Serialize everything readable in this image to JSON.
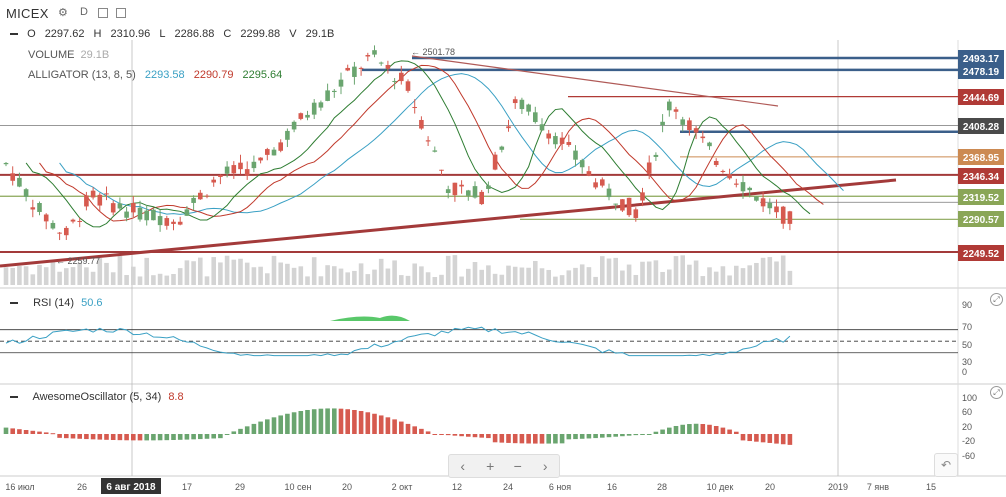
{
  "header": {
    "symbol": "MICEX",
    "gear_icon": "gear-icon",
    "interval": "D",
    "compare_icon": "compare-icon",
    "ohlc": {
      "o_label": "O",
      "o": "2297.62",
      "h_label": "H",
      "h": "2310.96",
      "l_label": "L",
      "l": "2286.88",
      "c_label": "C",
      "c": "2299.88",
      "v_label": "V",
      "v": "29.1B"
    },
    "volume": {
      "label": "VOLUME",
      "value": "29.1B"
    },
    "alligator": {
      "label": "ALLIGATOR (13, 8, 5)",
      "jaw": "2293.58",
      "teeth": "2290.79",
      "lips": "2295.64"
    }
  },
  "colors": {
    "up": "#6aa56f",
    "down": "#d65a4f",
    "jaw": "#3aa0c4",
    "teeth": "#c0392b",
    "lips": "#2e7d32",
    "volume": "#d4d4d4"
  },
  "price_axis": {
    "labels": [
      {
        "text": "2493.17",
        "color": "#3b5f8a"
      },
      {
        "text": "2478.19",
        "color": "#3b5f8a"
      },
      {
        "text": "2444.69",
        "color": "#b03a36"
      },
      {
        "text": "2408.28",
        "color": "#4a4a4a"
      },
      {
        "text": "2368.95",
        "color": "#cc8a52"
      },
      {
        "text": "2346.34",
        "color": "#b03a36"
      },
      {
        "text": "2319.52",
        "color": "#8aa657"
      },
      {
        "text": "2290.57",
        "color": "#8aa657"
      },
      {
        "text": "2249.52",
        "color": "#b03a36"
      }
    ]
  },
  "annotations": {
    "high": "← 2501.78",
    "low": "← 2259.77"
  },
  "rsi": {
    "label": "RSI (14)",
    "value": "50.6",
    "ticks": [
      "90",
      "70",
      "50",
      "30",
      "0"
    ]
  },
  "ao": {
    "label": "AwesomeOscillator (5, 34)",
    "value": "8.8",
    "ticks": [
      "100",
      "60",
      "20",
      "-20",
      "-60"
    ]
  },
  "time_axis": {
    "labels": [
      "16 июл",
      "26",
      "6 авг 2018",
      "17",
      "29",
      "10 сен",
      "20",
      "2 окт",
      "12",
      "24",
      "6 ноя",
      "16",
      "28",
      "10 дек",
      "20",
      "2019",
      "7 янв",
      "15"
    ],
    "highlight": "6 авг 2018"
  },
  "nav": {
    "left": "‹",
    "zoom_in": "+",
    "zoom_out": "−",
    "right": "›"
  },
  "undo": "↶"
}
